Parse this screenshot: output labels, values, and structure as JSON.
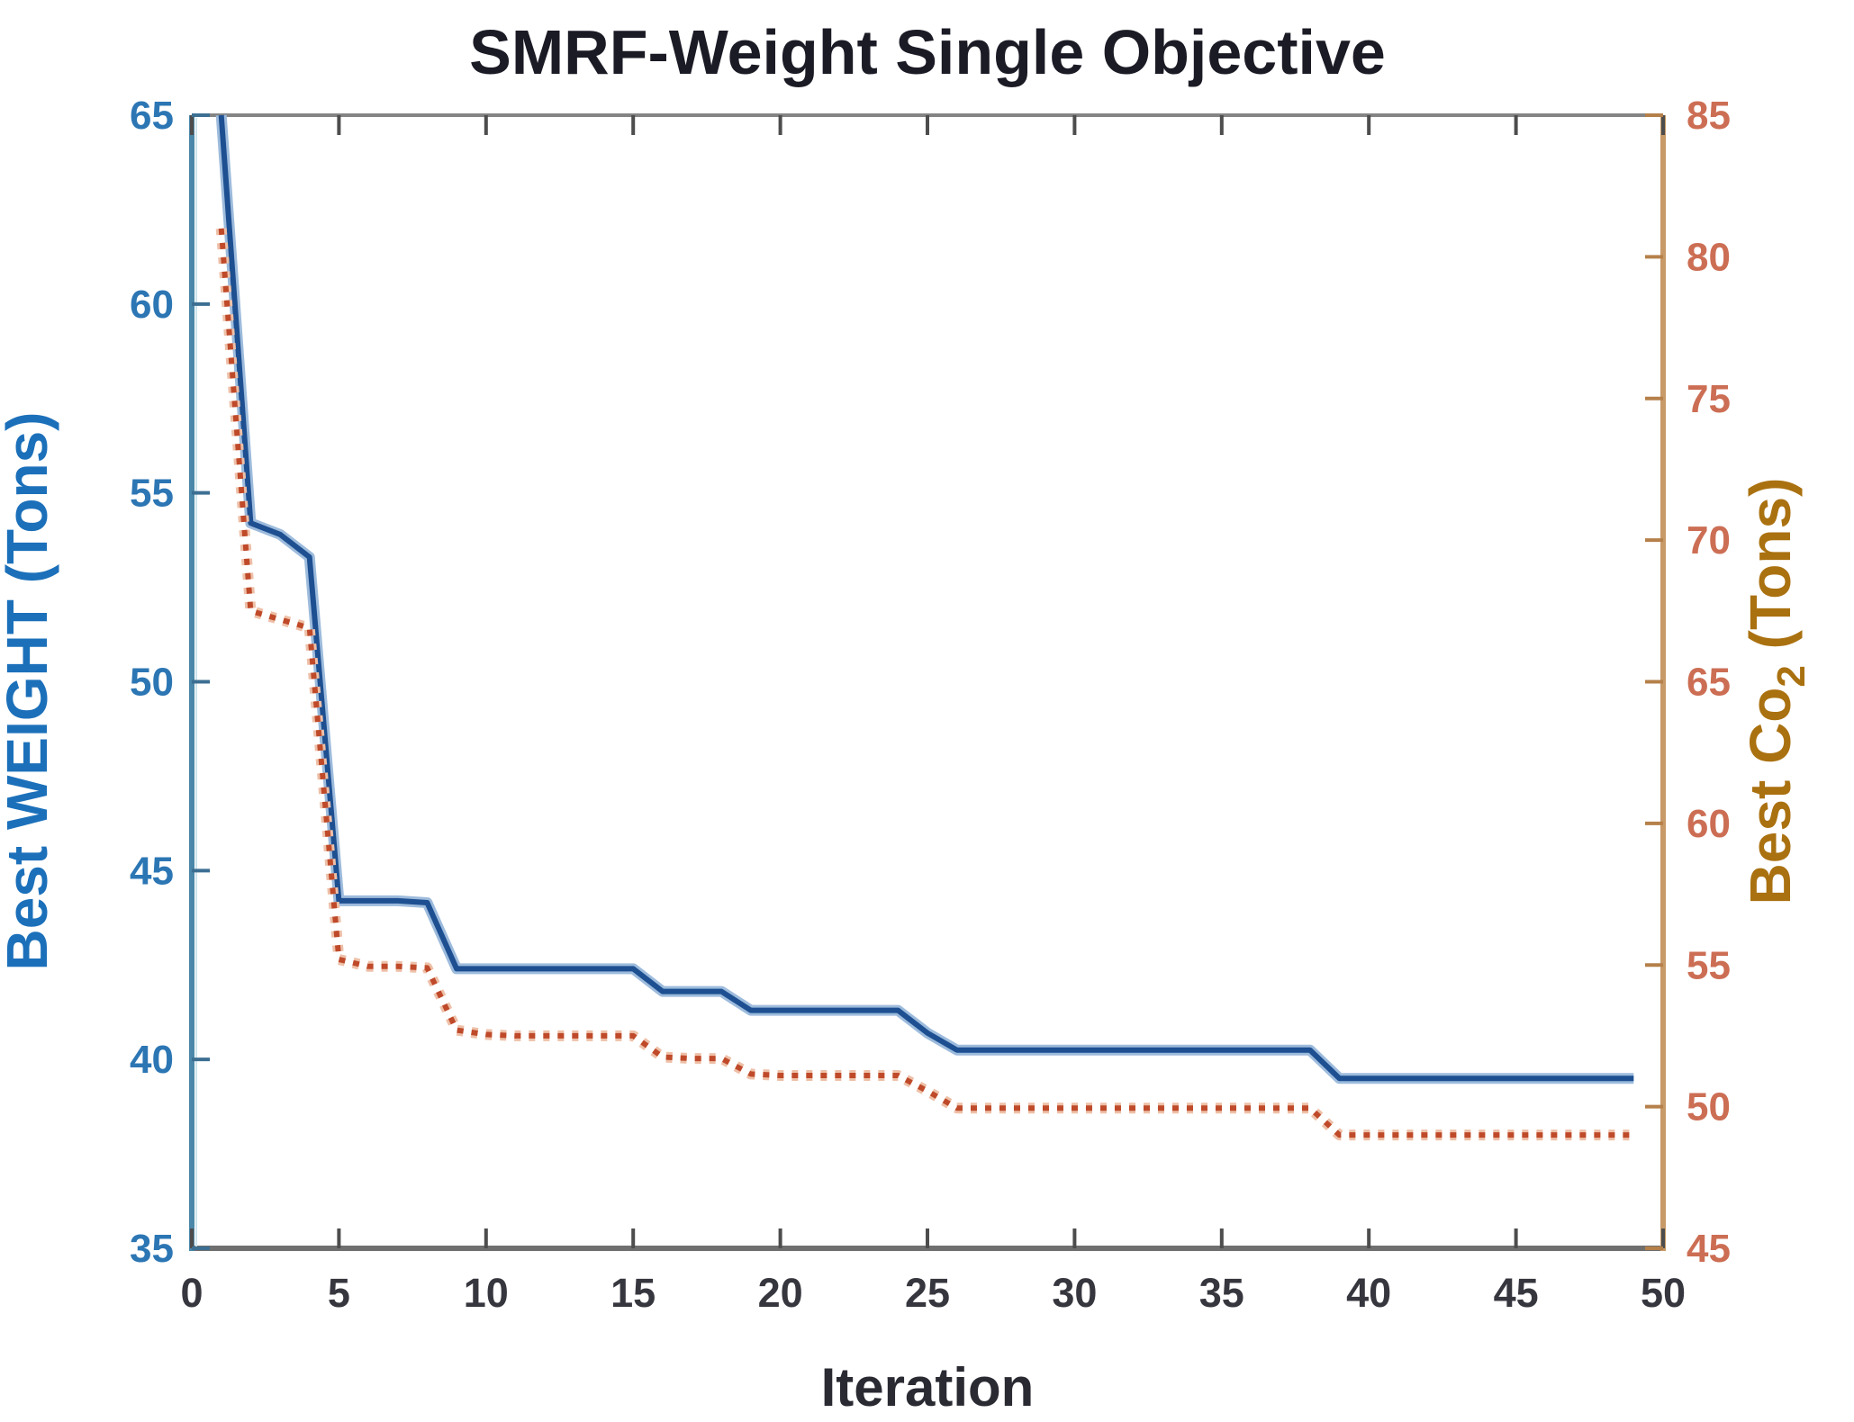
{
  "chart_data": {
    "type": "line",
    "title": "SMRF-Weight Single Objective",
    "title_color": "#1b1b26",
    "xlabel": "Iteration",
    "xlabel_color": "#2a2a33",
    "x_tick_label_color": "#36363e",
    "frame_top_color": "#848484",
    "frame_bottom_color": "#6f6f6f",
    "xlim": [
      0,
      50
    ],
    "x_ticks": [
      0,
      5,
      10,
      15,
      20,
      25,
      30,
      35,
      40,
      45,
      50
    ],
    "grid": false,
    "legend": "none",
    "left_axis": {
      "label": "Best WEIGHT (Tons)",
      "label_color": "#1c70ba",
      "tick_color": "#2c76b4",
      "axis_line_color": "#4a87a8",
      "axis_inner_line_color": "#cde4ec",
      "lim": [
        35,
        65
      ],
      "ticks": [
        35,
        40,
        45,
        50,
        55,
        60,
        65
      ]
    },
    "right_axis": {
      "label_prefix": "Best Co",
      "label_sub": "2",
      "label_suffix": " (Tons)",
      "label_color": "#aa7110",
      "tick_color": "#cc6e54",
      "axis_line_color": "#c89a68",
      "lim": [
        45,
        85
      ],
      "ticks": [
        45,
        50,
        55,
        60,
        65,
        70,
        75,
        80,
        85
      ]
    },
    "series": [
      {
        "name": "Best Weight",
        "axis": "left",
        "style": "solid",
        "color": "#1d4f91",
        "halo_color": "#9dbbdc",
        "x_first": 1,
        "x_step": 1,
        "values": [
          65,
          54.2,
          53.9,
          53.3,
          44.2,
          44.2,
          44.2,
          44.15,
          42.4,
          42.4,
          42.4,
          42.4,
          42.4,
          42.4,
          42.4,
          41.8,
          41.8,
          41.8,
          41.3,
          41.3,
          41.3,
          41.3,
          41.3,
          41.3,
          40.7,
          40.25,
          40.25,
          40.25,
          40.25,
          40.25,
          40.25,
          40.25,
          40.25,
          40.25,
          40.25,
          40.25,
          40.25,
          40.25,
          39.5,
          39.5,
          39.5,
          39.5,
          39.5,
          39.5,
          39.5,
          39.5,
          39.5,
          39.5,
          39.5
        ]
      },
      {
        "name": "Best Co2",
        "axis": "right",
        "style": "dotted",
        "color": "#bf4a2a",
        "halo_color": "#eec0a8",
        "x_first": 1,
        "x_step": 1,
        "values": [
          81,
          67.5,
          67.2,
          66.9,
          55.2,
          54.95,
          54.95,
          54.9,
          52.7,
          52.55,
          52.5,
          52.5,
          52.5,
          52.5,
          52.5,
          51.75,
          51.7,
          51.7,
          51.15,
          51.1,
          51.1,
          51.1,
          51.1,
          51.1,
          50.55,
          49.95,
          49.95,
          49.95,
          49.95,
          49.95,
          49.95,
          49.95,
          49.95,
          49.95,
          49.95,
          49.95,
          49.95,
          49.95,
          49.0,
          49.0,
          49.0,
          49.0,
          49.0,
          49.0,
          49.0,
          49.0,
          49.0,
          49.0,
          49.0
        ]
      }
    ]
  }
}
